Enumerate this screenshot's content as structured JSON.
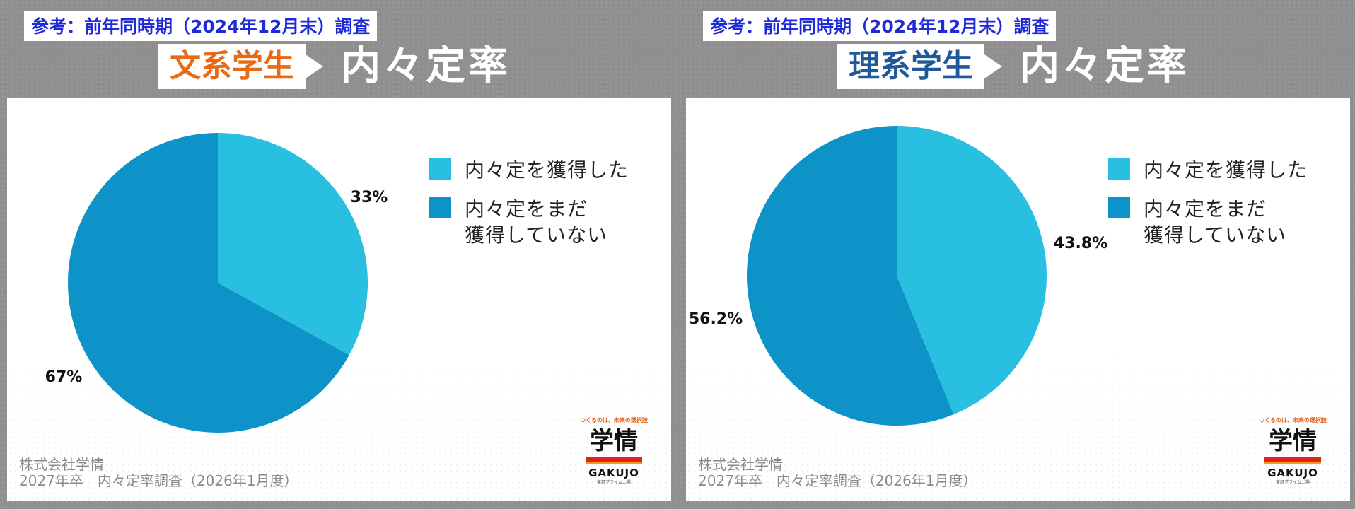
{
  "colors": {
    "acquired": "#29bfe0",
    "not_acquired": "#0e93c9",
    "badge_text": "#1f2ad8",
    "humanities_tag": "#ea6a14",
    "science_tag": "#1e5a9b"
  },
  "panels": [
    {
      "reference_badge": "参考：前年同時期（2024年12月末）調査",
      "tag": "文系学生",
      "title": "内々定率",
      "legend": [
        {
          "label": "内々定を獲得した",
          "color_key": "acquired"
        },
        {
          "label": "内々定をまだ\n獲得していない",
          "color_key": "not_acquired"
        }
      ],
      "footer": {
        "company": "株式会社学情",
        "survey": "2027年卒　内々定率調査（2026年1月度）"
      },
      "logo": {
        "tagline": "つくるのは、未来の選択肢",
        "name": "学情",
        "name_en": "GAKUJO",
        "sub": "東証プライム上場"
      }
    },
    {
      "reference_badge": "参考：前年同時期（2024年12月末）調査",
      "tag": "理系学生",
      "title": "内々定率",
      "legend": [
        {
          "label": "内々定を獲得した",
          "color_key": "acquired"
        },
        {
          "label": "内々定をまだ\n獲得していない",
          "color_key": "not_acquired"
        }
      ],
      "footer": {
        "company": "株式会社学情",
        "survey": "2027年卒　内々定率調査（2026年1月度）"
      },
      "logo": {
        "tagline": "つくるのは、未来の選択肢",
        "name": "学情",
        "name_en": "GAKUJO",
        "sub": "東証プライム上場"
      }
    }
  ],
  "chart_data": [
    {
      "type": "pie",
      "categories": [
        "内々定を獲得した",
        "内々定をまだ獲得していない"
      ],
      "values": [
        33,
        67
      ],
      "value_labels": [
        "33%",
        "67%"
      ],
      "colors": [
        "#29bfe0",
        "#0e93c9"
      ],
      "start": "12 o'clock, clockwise",
      "legend_position": "right"
    },
    {
      "type": "pie",
      "categories": [
        "内々定を獲得した",
        "内々定をまだ獲得していない"
      ],
      "values": [
        43.8,
        56.2
      ],
      "value_labels": [
        "43.8%",
        "56.2%"
      ],
      "colors": [
        "#29bfe0",
        "#0e93c9"
      ],
      "start": "12 o'clock, clockwise",
      "legend_position": "right"
    }
  ]
}
